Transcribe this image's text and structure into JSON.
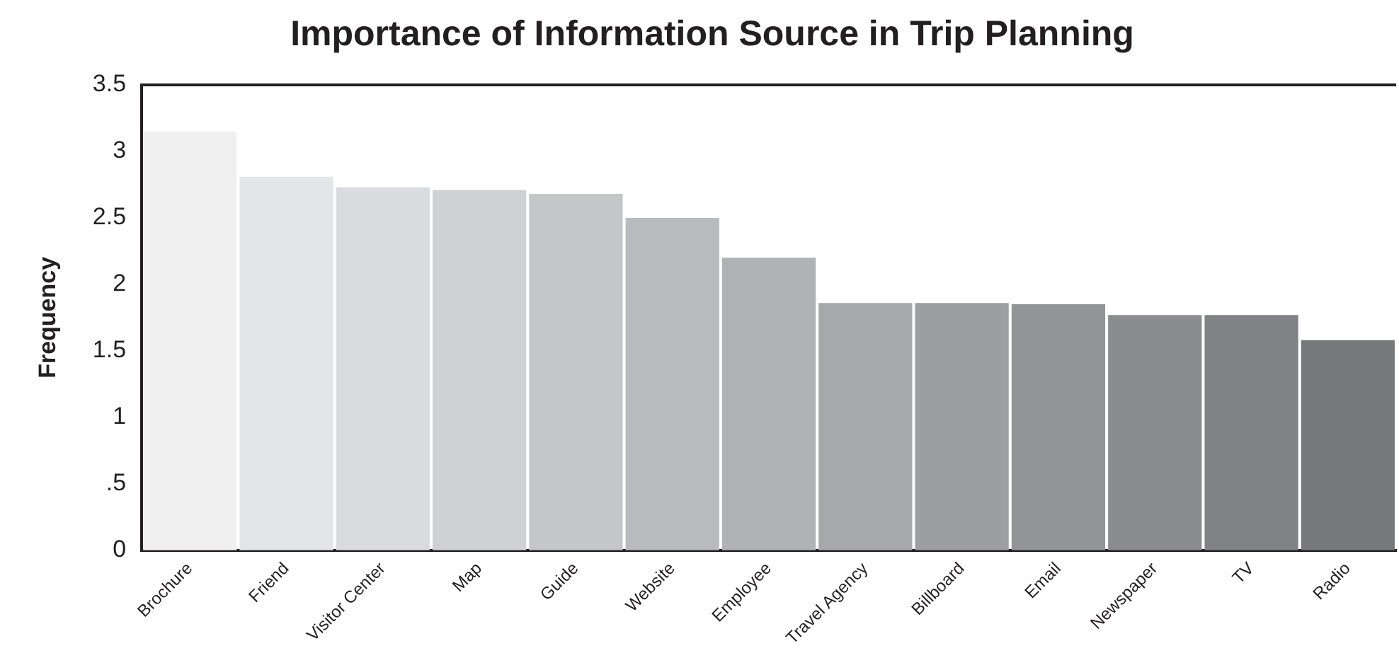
{
  "chart_data": {
    "type": "bar",
    "title": "Importance of Information Source in Trip Planning",
    "ylabel": "Frequency",
    "categories": [
      "Brochure",
      "Friend",
      "Visitor Center",
      "Map",
      "Guide",
      "Website",
      "Employee",
      "Travel Agency",
      "Billboard",
      "Email",
      "Newspaper",
      "TV",
      "Radio"
    ],
    "values": [
      3.15,
      2.81,
      2.73,
      2.71,
      2.68,
      2.5,
      2.2,
      1.86,
      1.86,
      1.85,
      1.77,
      1.77,
      1.58
    ],
    "colors": [
      "#f0f0f1",
      "#e4e5e6",
      "#dadbdc",
      "#d0d1d3",
      "#c5c6c8",
      "#b9babd",
      "#b1b2b4",
      "#a7a8ab",
      "#9d9ea0",
      "#939497",
      "#8b8c8e",
      "#818285",
      "#77787b"
    ],
    "ylim": [
      0,
      3.5
    ],
    "yticks": [
      0,
      {
        "value": 0.5,
        "label": ".5"
      },
      1,
      1.5,
      2,
      2.5,
      3,
      3.5
    ],
    "grid": false,
    "legend": false
  }
}
